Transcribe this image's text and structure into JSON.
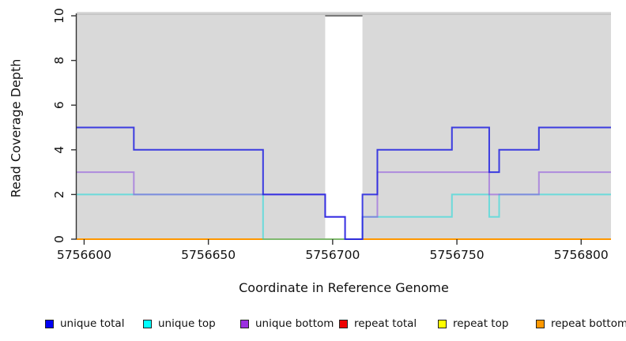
{
  "chart_data": {
    "type": "line",
    "subtype": "step-coverage",
    "title": "",
    "xlabel": "Coordinate in Reference Genome",
    "ylabel": "Read Coverage Depth",
    "xlim": [
      5756597,
      5756812
    ],
    "ylim": [
      0,
      10
    ],
    "xticks": [
      5756600,
      5756650,
      5756700,
      5756750,
      5756800
    ],
    "yticks": [
      0,
      2,
      4,
      6,
      8,
      10
    ],
    "grid": false,
    "plot_background": "#d9d9d9",
    "top_border_color": "#c6c6c6",
    "axis_color": "#333333",
    "gap_region": {
      "start": 5756697,
      "end": 5756712,
      "fill": "#ffffff",
      "clipped_line_value": 10,
      "clipped_line_color": "#787878"
    },
    "series": [
      {
        "name": "repeat total",
        "color": "#e00000",
        "opacity": 1.0,
        "steps": [
          [
            5756597,
            0
          ]
        ]
      },
      {
        "name": "repeat top",
        "color": "#ffff00",
        "opacity": 1.0,
        "steps": [
          [
            5756597,
            0
          ]
        ]
      },
      {
        "name": "repeat bottom",
        "color": "#ff9700",
        "opacity": 1.0,
        "steps": [
          [
            5756597,
            0
          ]
        ]
      },
      {
        "name": "unique top",
        "color": "#00dcdc",
        "opacity": 0.5,
        "steps": [
          [
            5756597,
            2
          ],
          [
            5756672,
            0
          ],
          [
            5756712,
            1
          ],
          [
            5756748,
            2
          ],
          [
            5756763,
            1
          ],
          [
            5756767,
            2
          ]
        ]
      },
      {
        "name": "unique bottom",
        "color": "#8a4be0",
        "opacity": 0.55,
        "steps": [
          [
            5756597,
            3
          ],
          [
            5756620,
            2
          ],
          [
            5756697,
            1
          ],
          [
            5756705,
            0
          ],
          [
            5756712,
            1
          ],
          [
            5756718,
            3
          ],
          [
            5756763,
            2
          ],
          [
            5756783,
            3
          ]
        ]
      },
      {
        "name": "unique total",
        "color": "#2020e0",
        "opacity": 0.85,
        "steps": [
          [
            5756597,
            5
          ],
          [
            5756620,
            4
          ],
          [
            5756672,
            2
          ],
          [
            5756697,
            1
          ],
          [
            5756705,
            0
          ],
          [
            5756712,
            2
          ],
          [
            5756718,
            4
          ],
          [
            5756748,
            5
          ],
          [
            5756763,
            3
          ],
          [
            5756767,
            4
          ],
          [
            5756783,
            5
          ]
        ]
      }
    ],
    "legend_position": "bottom",
    "legend": [
      {
        "label": "unique total",
        "swatch": "#0000f5"
      },
      {
        "label": "unique top",
        "swatch": "#00ffff"
      },
      {
        "label": "unique bottom",
        "swatch": "#9b30e0"
      },
      {
        "label": "repeat total",
        "swatch": "#ee0000"
      },
      {
        "label": "repeat top",
        "swatch": "#ffff00"
      },
      {
        "label": "repeat bottom",
        "swatch": "#ff9800"
      }
    ]
  }
}
